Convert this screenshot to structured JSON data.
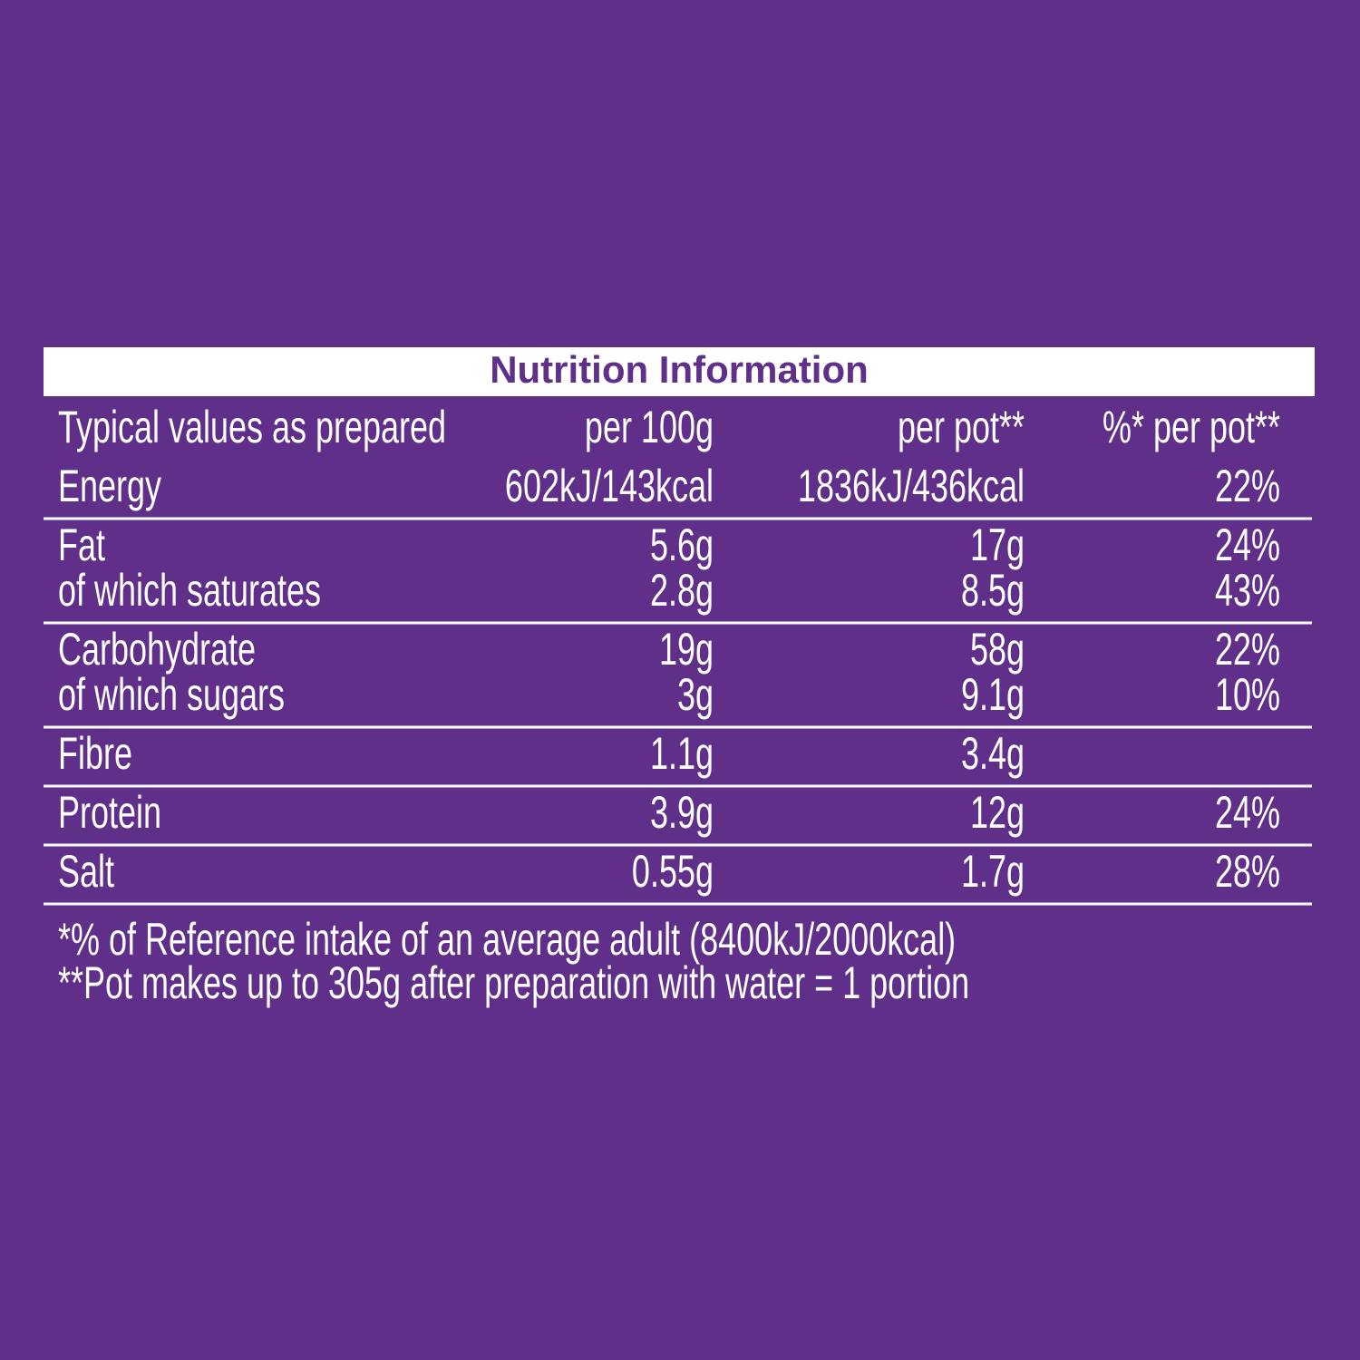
{
  "title": "Nutrition Information",
  "header": [
    "Typical values as prepared",
    "per 100g",
    "per pot**",
    "%* per pot**"
  ],
  "groups": [
    [
      [
        "Energy",
        "602kJ/143kcal",
        "1836kJ/436kcal",
        "22%"
      ]
    ],
    [
      [
        "Fat",
        "5.6g",
        "17g",
        "24%"
      ],
      [
        "of which saturates",
        "2.8g",
        "8.5g",
        "43%"
      ]
    ],
    [
      [
        "Carbohydrate",
        "19g",
        "58g",
        "22%"
      ],
      [
        "of which sugars",
        "3g",
        "9.1g",
        "10%"
      ]
    ],
    [
      [
        "Fibre",
        "1.1g",
        "3.4g"
      ]
    ],
    [
      [
        "Protein",
        "3.9g",
        "12g",
        "24%"
      ]
    ],
    [
      [
        "Salt",
        "0.55g",
        "1.7g",
        "28%"
      ]
    ]
  ],
  "footnotes": [
    "*% of Reference intake of an average adult (8400kJ/2000kcal)",
    "**Pot makes up to 305g after preparation with water = 1 portion"
  ]
}
